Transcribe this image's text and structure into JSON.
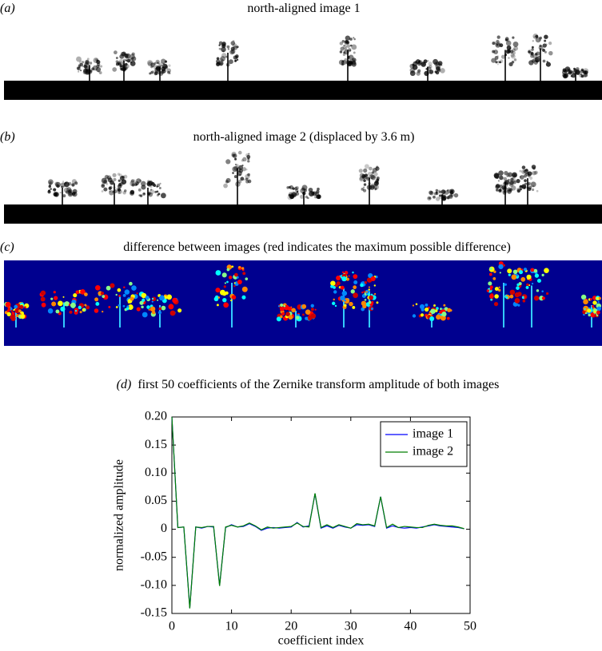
{
  "panels": [
    {
      "label": "(a)",
      "title": "north-aligned image 1"
    },
    {
      "label": "(b)",
      "title": "north-aligned image 2 (displaced by 3.6 m)"
    },
    {
      "label": "(c)",
      "title": "difference between images (red indicates the maximum possible difference)"
    }
  ],
  "chart_data": {
    "type": "line",
    "panel_label": "(d)",
    "title": "first 50 coefficients of the Zernike transform amplitude of both images",
    "x_label": "coefficient index",
    "y_label": "normalized amplitude",
    "x": [
      0,
      1,
      2,
      3,
      4,
      5,
      6,
      7,
      8,
      9,
      10,
      11,
      12,
      13,
      14,
      15,
      16,
      17,
      18,
      19,
      20,
      21,
      22,
      23,
      24,
      25,
      26,
      27,
      28,
      29,
      30,
      31,
      32,
      33,
      34,
      35,
      36,
      37,
      38,
      39,
      40,
      41,
      42,
      43,
      44,
      45,
      46,
      47,
      48,
      49
    ],
    "series": [
      {
        "name": "image 1",
        "color": "#0000ff",
        "values": [
          0.2,
          0.003,
          0.004,
          -0.14,
          0.004,
          0.002,
          0.005,
          0.004,
          -0.1,
          0.003,
          0.008,
          0.004,
          0.005,
          0.01,
          0.005,
          -0.002,
          0.002,
          0.003,
          0.002,
          0.003,
          0.004,
          0.012,
          0.004,
          0.006,
          0.063,
          0.002,
          0.006,
          0.002,
          0.007,
          0.004,
          0.002,
          0.008,
          0.007,
          0.008,
          0.005,
          0.058,
          0.002,
          0.006,
          0.003,
          0.002,
          0.003,
          0.002,
          0.004,
          0.006,
          0.008,
          0.006,
          0.005,
          0.004,
          0.003,
          0.001
        ]
      },
      {
        "name": "image 2",
        "color": "#007f00",
        "values": [
          0.2,
          0.003,
          0.004,
          -0.141,
          0.004,
          0.003,
          0.005,
          0.005,
          -0.101,
          0.004,
          0.007,
          0.004,
          0.006,
          0.011,
          0.006,
          -0.001,
          0.004,
          0.002,
          0.003,
          0.004,
          0.005,
          0.011,
          0.005,
          0.004,
          0.064,
          0.003,
          0.008,
          0.003,
          0.008,
          0.005,
          0.002,
          0.01,
          0.008,
          0.009,
          0.006,
          0.058,
          0.003,
          0.009,
          0.003,
          0.005,
          0.004,
          0.003,
          0.003,
          0.007,
          0.009,
          0.007,
          0.006,
          0.006,
          0.004,
          0.001
        ]
      }
    ],
    "xlim": [
      0,
      50
    ],
    "xticks": [
      0,
      10,
      20,
      30,
      40,
      50
    ],
    "ylim": [
      -0.15,
      0.2
    ],
    "yticks": [
      -0.15,
      {
        "value": -0.1,
        "label": "-0.10"
      },
      -0.05,
      0,
      0.05,
      {
        "value": 0.1,
        "label": "0.10"
      },
      0.15,
      {
        "value": 0.2,
        "label": "0.20"
      }
    ],
    "legend": "upper right"
  }
}
